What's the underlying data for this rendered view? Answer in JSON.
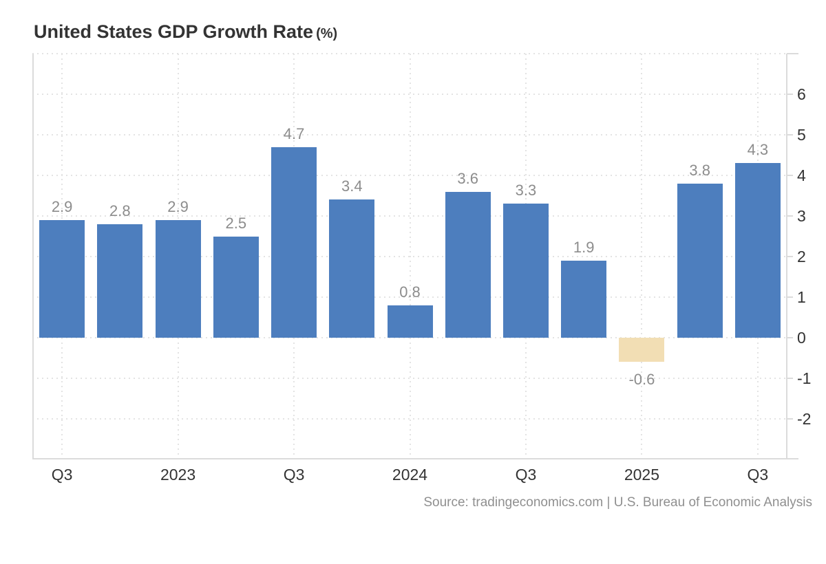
{
  "chart_data": {
    "type": "bar",
    "title": "United States GDP Growth Rate",
    "title_suffix": "(%)",
    "source": "Source: tradingeconomics.com | U.S. Bureau of Economic Analysis",
    "values": [
      2.9,
      2.8,
      2.9,
      2.5,
      4.7,
      3.4,
      0.8,
      3.6,
      3.3,
      1.9,
      -0.6,
      3.8,
      4.3
    ],
    "bar_labels": [
      "2.9",
      "2.8",
      "2.9",
      "2.5",
      "4.7",
      "3.4",
      "0.8",
      "3.6",
      "3.3",
      "1.9",
      "-0.6",
      "3.8",
      "4.3"
    ],
    "x_ticks": [
      {
        "slot": 0,
        "label": "Q3"
      },
      {
        "slot": 2,
        "label": "2023"
      },
      {
        "slot": 4,
        "label": "Q3"
      },
      {
        "slot": 6,
        "label": "2024"
      },
      {
        "slot": 8,
        "label": "Q3"
      },
      {
        "slot": 10,
        "label": "2025"
      },
      {
        "slot": 12,
        "label": "Q3"
      }
    ],
    "y_ticks": [
      6,
      5,
      4,
      3,
      2,
      1,
      0,
      -1,
      -2
    ],
    "y_gridlines": [
      7,
      6,
      5,
      4,
      3,
      2,
      1,
      0,
      -1,
      -2
    ],
    "ylim": [
      -3,
      7
    ],
    "xlabel": "",
    "ylabel": "",
    "grid": true,
    "legend": "none",
    "y_axis_side": "right",
    "colors": {
      "bar_positive": "#4D7EBE",
      "bar_negative": "#F2DEB4",
      "grid": "#E3E3E3",
      "axis": "#DBDBDB",
      "value_label": "#8C8C8C",
      "tick_label": "#333333",
      "title": "#333333",
      "source": "#8F8F8F"
    }
  }
}
